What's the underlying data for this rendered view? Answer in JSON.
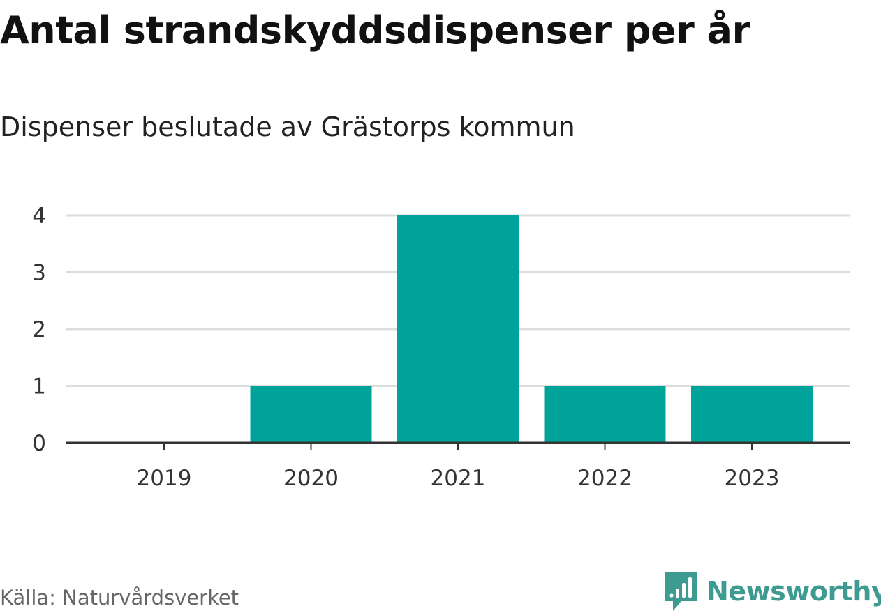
{
  "chart_data": {
    "type": "bar",
    "title": "Antal strandskyddsdispenser per år",
    "subtitle": "Dispenser beslutade av Grästorps kommun",
    "categories": [
      "2019",
      "2020",
      "2021",
      "2022",
      "2023"
    ],
    "values": [
      0,
      1,
      4,
      1,
      1
    ],
    "xlabel": "",
    "ylabel": "",
    "ylim": [
      0,
      4
    ],
    "yticks": [
      0,
      1,
      2,
      3,
      4
    ],
    "grid": true,
    "bar_color": "#00a39a",
    "gridline_color": "#dddddd",
    "axis_color": "#333333"
  },
  "footer": {
    "source": "Källa: Naturvårdsverket",
    "brand": "Newsworthy",
    "brand_color": "#3e9b92"
  },
  "icons": {
    "brand_logo": "newsworthy-logo-icon"
  }
}
